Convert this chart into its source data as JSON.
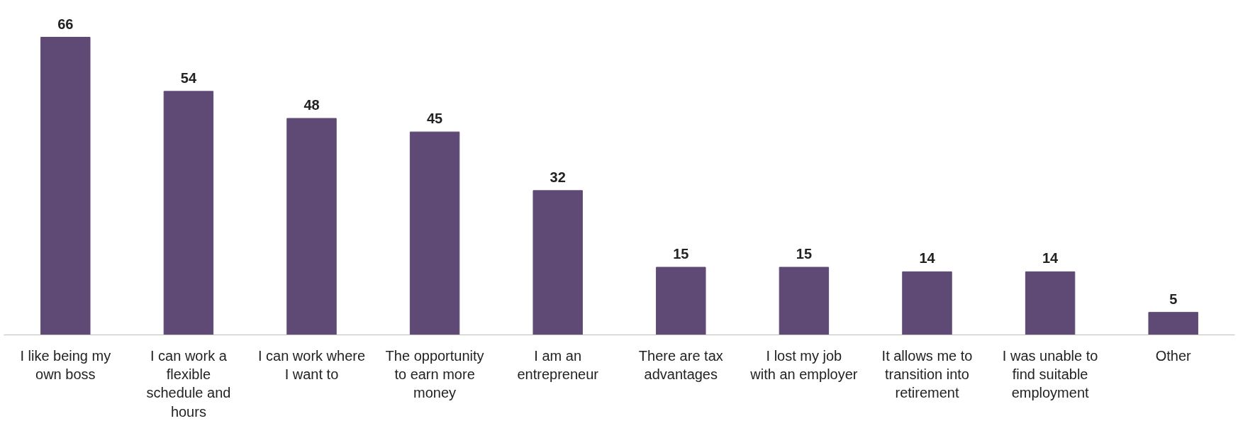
{
  "chart_data": {
    "type": "bar",
    "categories": [
      "I like being my own boss",
      "I can work a flexible schedule and hours",
      "I can work where I want to",
      "The opportunity to earn more money",
      "I am an entrepreneur",
      "There are tax advantages",
      "I lost my job with an employer",
      "It allows me to transition into retirement",
      "I was unable to find suitable employment",
      "Other"
    ],
    "values": [
      66,
      54,
      48,
      45,
      32,
      15,
      15,
      14,
      14,
      5
    ],
    "color": "#5f4a75",
    "data_labels": true
  }
}
